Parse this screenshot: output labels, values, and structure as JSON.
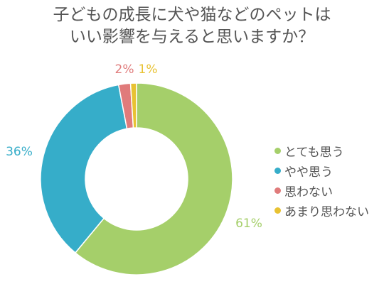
{
  "title": {
    "line1": "子どもの成長に犬や猫などのペットは",
    "line2": "いい影響を与えると思いますか？"
  },
  "chart_data": {
    "type": "pie",
    "donut": true,
    "categories": [
      "とても思う",
      "やや思う",
      "思わない",
      "あまり思わない"
    ],
    "values": [
      61,
      36,
      2,
      1
    ],
    "value_labels": [
      "61%",
      "36%",
      "2%",
      "1%"
    ],
    "colors": [
      "#a5cf6a",
      "#36adc9",
      "#e07b7b",
      "#e8c232"
    ],
    "legend_placement": "right",
    "grid": false
  }
}
